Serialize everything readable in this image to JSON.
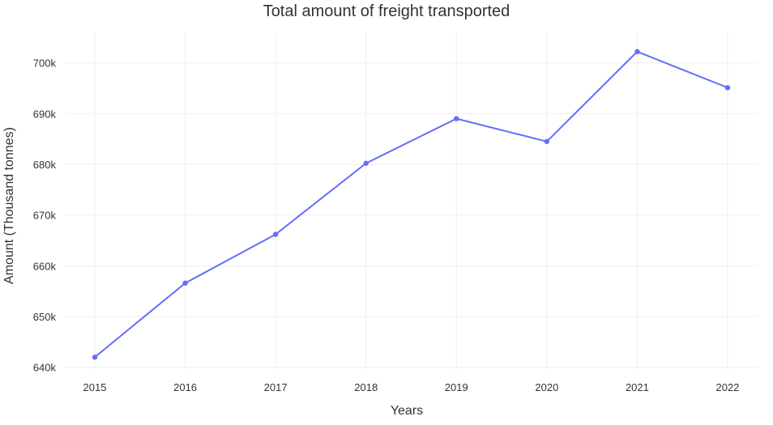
{
  "chart_data": {
    "type": "line",
    "title": "Total amount of freight transported",
    "xlabel": "Years",
    "ylabel": "Amount (Thousand tonnes)",
    "x": [
      2015,
      2016,
      2017,
      2018,
      2019,
      2020,
      2021,
      2022
    ],
    "series": [
      {
        "values": [
          642000,
          656600,
          666200,
          680200,
          689000,
          684500,
          702200,
          695100
        ]
      }
    ],
    "ylim": [
      639800,
      706000
    ],
    "yticks": [
      640000,
      650000,
      660000,
      670000,
      680000,
      690000,
      700000
    ],
    "ytick_labels": [
      "640k",
      "650k",
      "660k",
      "670k",
      "680k",
      "690k",
      "700k"
    ],
    "xtick_labels": [
      "2015",
      "2016",
      "2017",
      "2018",
      "2019",
      "2020",
      "2021",
      "2022"
    ],
    "line_color": "#636EFA",
    "grid": true,
    "legend": "none"
  }
}
